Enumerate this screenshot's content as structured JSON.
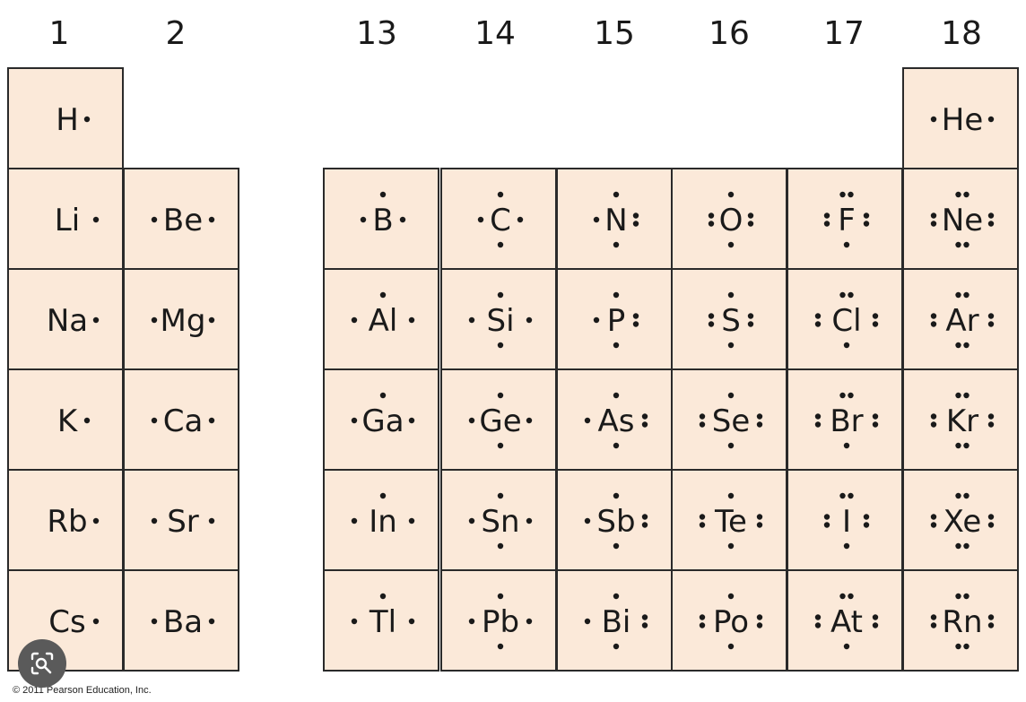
{
  "group_labels": [
    "1",
    "2",
    "13",
    "14",
    "15",
    "16",
    "17",
    "18"
  ],
  "colors": {
    "cell_fill": "#fbe9d9",
    "border": "#2a2a2a",
    "text": "#1a1a1a",
    "lens_button": "#5a5a5a"
  },
  "elements": [
    {
      "symbol": "H",
      "group": 1,
      "period": 1,
      "valence": 1
    },
    {
      "symbol": "He",
      "group": 18,
      "period": 1,
      "valence": 2
    },
    {
      "symbol": "Li",
      "group": 1,
      "period": 2,
      "valence": 1
    },
    {
      "symbol": "Be",
      "group": 2,
      "period": 2,
      "valence": 2
    },
    {
      "symbol": "B",
      "group": 13,
      "period": 2,
      "valence": 3
    },
    {
      "symbol": "C",
      "group": 14,
      "period": 2,
      "valence": 4
    },
    {
      "symbol": "N",
      "group": 15,
      "period": 2,
      "valence": 5
    },
    {
      "symbol": "O",
      "group": 16,
      "period": 2,
      "valence": 6
    },
    {
      "symbol": "F",
      "group": 17,
      "period": 2,
      "valence": 7
    },
    {
      "symbol": "Ne",
      "group": 18,
      "period": 2,
      "valence": 8
    },
    {
      "symbol": "Na",
      "group": 1,
      "period": 3,
      "valence": 1
    },
    {
      "symbol": "Mg",
      "group": 2,
      "period": 3,
      "valence": 2
    },
    {
      "symbol": "Al",
      "group": 13,
      "period": 3,
      "valence": 3
    },
    {
      "symbol": "Si",
      "group": 14,
      "period": 3,
      "valence": 4
    },
    {
      "symbol": "P",
      "group": 15,
      "period": 3,
      "valence": 5
    },
    {
      "symbol": "S",
      "group": 16,
      "period": 3,
      "valence": 6
    },
    {
      "symbol": "Cl",
      "group": 17,
      "period": 3,
      "valence": 7
    },
    {
      "symbol": "Ar",
      "group": 18,
      "period": 3,
      "valence": 8
    },
    {
      "symbol": "K",
      "group": 1,
      "period": 4,
      "valence": 1
    },
    {
      "symbol": "Ca",
      "group": 2,
      "period": 4,
      "valence": 2
    },
    {
      "symbol": "Ga",
      "group": 13,
      "period": 4,
      "valence": 3
    },
    {
      "symbol": "Ge",
      "group": 14,
      "period": 4,
      "valence": 4
    },
    {
      "symbol": "As",
      "group": 15,
      "period": 4,
      "valence": 5
    },
    {
      "symbol": "Se",
      "group": 16,
      "period": 4,
      "valence": 6
    },
    {
      "symbol": "Br",
      "group": 17,
      "period": 4,
      "valence": 7
    },
    {
      "symbol": "Kr",
      "group": 18,
      "period": 4,
      "valence": 8
    },
    {
      "symbol": "Rb",
      "group": 1,
      "period": 5,
      "valence": 1
    },
    {
      "symbol": "Sr",
      "group": 2,
      "period": 5,
      "valence": 2
    },
    {
      "symbol": "In",
      "group": 13,
      "period": 5,
      "valence": 3
    },
    {
      "symbol": "Sn",
      "group": 14,
      "period": 5,
      "valence": 4
    },
    {
      "symbol": "Sb",
      "group": 15,
      "period": 5,
      "valence": 5
    },
    {
      "symbol": "Te",
      "group": 16,
      "period": 5,
      "valence": 6
    },
    {
      "symbol": "I",
      "group": 17,
      "period": 5,
      "valence": 7
    },
    {
      "symbol": "Xe",
      "group": 18,
      "period": 5,
      "valence": 8
    },
    {
      "symbol": "Cs",
      "group": 1,
      "period": 6,
      "valence": 1
    },
    {
      "symbol": "Ba",
      "group": 2,
      "period": 6,
      "valence": 2
    },
    {
      "symbol": "Tl",
      "group": 13,
      "period": 6,
      "valence": 3
    },
    {
      "symbol": "Pb",
      "group": 14,
      "period": 6,
      "valence": 4
    },
    {
      "symbol": "Bi",
      "group": 15,
      "period": 6,
      "valence": 5
    },
    {
      "symbol": "Po",
      "group": 16,
      "period": 6,
      "valence": 6
    },
    {
      "symbol": "At",
      "group": 17,
      "period": 6,
      "valence": 7
    },
    {
      "symbol": "Rn",
      "group": 18,
      "period": 6,
      "valence": 8
    }
  ],
  "copyright": "© 2011 Pearson Education, Inc.",
  "lens_button": {
    "icon": "camera-search-icon"
  }
}
